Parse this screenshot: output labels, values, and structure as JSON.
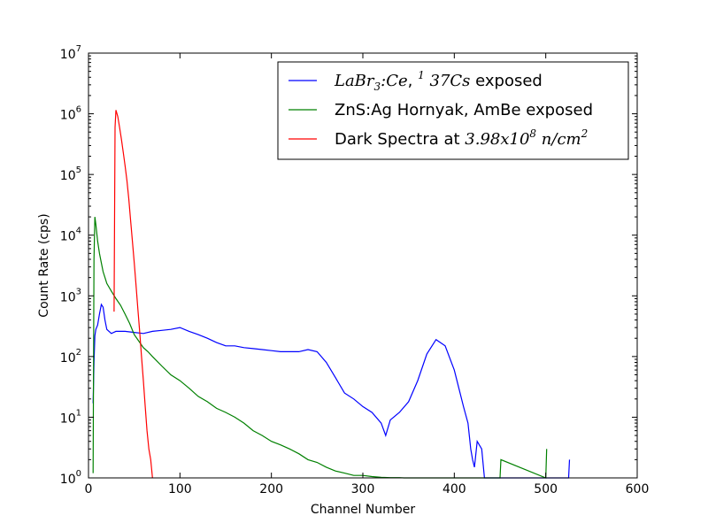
{
  "chart_data": {
    "type": "line",
    "title": "",
    "xlabel": "Channel Number",
    "ylabel": "Count Rate (cps)",
    "xlim": [
      0,
      600
    ],
    "ylim": [
      1,
      10000000
    ],
    "yscale": "log",
    "grid": false,
    "legend_position": "top-right",
    "x_ticks": [
      "0",
      "100",
      "200",
      "300",
      "400",
      "500",
      "600"
    ],
    "y_ticks": [
      {
        "base": "10",
        "exp": "0"
      },
      {
        "base": "10",
        "exp": "1"
      },
      {
        "base": "10",
        "exp": "2"
      },
      {
        "base": "10",
        "exp": "3"
      },
      {
        "base": "10",
        "exp": "4"
      },
      {
        "base": "10",
        "exp": "5"
      },
      {
        "base": "10",
        "exp": "6"
      },
      {
        "base": "10",
        "exp": "7"
      }
    ],
    "legend": [
      {
        "parts": [
          {
            "t": "LaBr",
            "math": true
          },
          {
            "t": "3",
            "sub": true,
            "math": true
          },
          {
            "t": ":Ce",
            "math": true
          },
          {
            "t": ", ",
            "math": false
          },
          {
            "t": "1",
            "sup": true,
            "math": true
          },
          {
            "t": " 37Cs",
            "math": true
          },
          {
            "t": " exposed",
            "math": false
          }
        ]
      },
      {
        "parts": [
          {
            "t": "ZnS:Ag Hornyak, AmBe exposed",
            "math": false
          }
        ]
      },
      {
        "parts": [
          {
            "t": "Dark Spectra at ",
            "math": false
          },
          {
            "t": "3.98x10",
            "math": true
          },
          {
            "t": "8",
            "sup": true,
            "math": true
          },
          {
            "t": "  n/cm",
            "math": true
          },
          {
            "t": "2",
            "sup": true,
            "math": true
          }
        ]
      }
    ],
    "series": [
      {
        "name": "LaBr3:Ce, 137Cs exposed",
        "color": "#0000ff",
        "x": [
          5,
          6,
          7,
          8,
          10,
          12,
          14,
          16,
          18,
          20,
          25,
          30,
          40,
          50,
          60,
          70,
          80,
          90,
          100,
          110,
          120,
          130,
          140,
          150,
          160,
          170,
          180,
          190,
          200,
          210,
          220,
          230,
          240,
          250,
          260,
          270,
          280,
          290,
          300,
          310,
          320,
          325,
          330,
          340,
          350,
          360,
          370,
          380,
          390,
          400,
          405,
          410,
          415,
          418,
          420,
          422,
          425,
          430,
          433,
          525,
          526
        ],
        "y": [
          17,
          80,
          220,
          280,
          330,
          500,
          720,
          650,
          400,
          280,
          240,
          260,
          260,
          250,
          240,
          260,
          270,
          280,
          300,
          260,
          230,
          200,
          170,
          150,
          150,
          140,
          135,
          130,
          125,
          120,
          120,
          120,
          130,
          120,
          80,
          45,
          25,
          20,
          15,
          12,
          8,
          5,
          9,
          12,
          18,
          40,
          110,
          190,
          150,
          60,
          30,
          15,
          8,
          3,
          2,
          1.5,
          4,
          3,
          1,
          1,
          2
        ]
      },
      {
        "name": "ZnS:Ag Hornyak, AmBe exposed",
        "color": "#008000",
        "x": [
          5,
          6,
          7,
          8,
          10,
          12,
          14,
          16,
          18,
          20,
          25,
          30,
          35,
          40,
          45,
          50,
          55,
          60,
          65,
          70,
          80,
          90,
          100,
          110,
          120,
          130,
          140,
          150,
          160,
          170,
          180,
          190,
          200,
          210,
          220,
          230,
          240,
          250,
          260,
          270,
          280,
          290,
          300,
          310,
          320,
          330,
          340,
          345,
          450,
          451,
          500,
          501
        ],
        "y": [
          1.2,
          4000,
          20000,
          15000,
          8000,
          5000,
          3500,
          2500,
          2000,
          1600,
          1200,
          900,
          700,
          500,
          350,
          230,
          180,
          140,
          120,
          100,
          70,
          50,
          40,
          30,
          22,
          18,
          14,
          12,
          10,
          8,
          6,
          5,
          4,
          3.5,
          3,
          2.5,
          2,
          1.8,
          1.5,
          1.3,
          1.2,
          1.1,
          1.1,
          1.05,
          1.02,
          1.01,
          1.01,
          1,
          1,
          2,
          1,
          3
        ]
      },
      {
        "name": "Dark Spectra at 3.98x10^8 n/cm^2",
        "color": "#ff0000",
        "x": [
          28,
          29,
          30,
          32,
          34,
          36,
          38,
          40,
          42,
          44,
          46,
          48,
          50,
          52,
          54,
          56,
          58,
          60,
          62,
          64,
          66,
          68,
          70
        ],
        "y": [
          550,
          600000,
          1150000,
          900000,
          600000,
          380000,
          230000,
          140000,
          80000,
          40000,
          18000,
          8000,
          3500,
          1500,
          600,
          250,
          100,
          40,
          15,
          6,
          3,
          2,
          1
        ]
      }
    ]
  }
}
